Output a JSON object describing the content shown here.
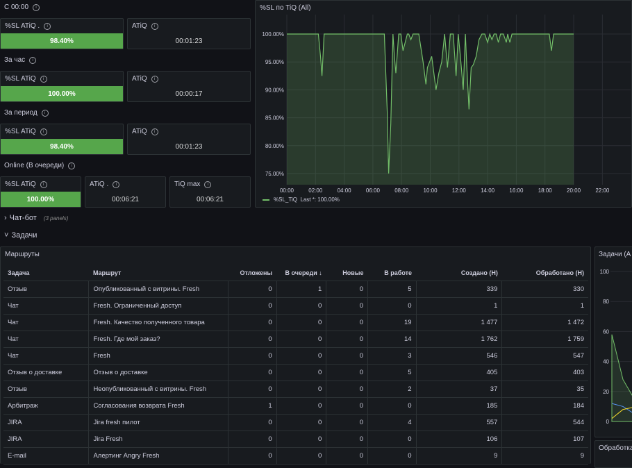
{
  "sections": {
    "s1": "С 00:00",
    "s2": "За час",
    "s3": "За период",
    "s4": "Online (В очереди)"
  },
  "stats": {
    "r1": {
      "sl_title": "%SL ATiQ .",
      "sl_value": "98.40%",
      "atiq_title": "ATiQ",
      "atiq_value": "00:01:23"
    },
    "r2": {
      "sl_title": "%SL ATiQ",
      "sl_value": "100.00%",
      "atiq_title": "ATiQ",
      "atiq_value": "00:00:17"
    },
    "r3": {
      "sl_title": "%SL ATiQ",
      "sl_value": "98.40%",
      "atiq_title": "ATiQ",
      "atiq_value": "00:01:23"
    },
    "r4": {
      "sl_title": "%SL ATiQ",
      "sl_value": "100.00%",
      "atiq_title": "ATiQ .",
      "atiq_value": "00:06:21",
      "tiq_title": "TiQ max",
      "tiq_value": "00:06:21"
    }
  },
  "chart_data": [
    {
      "type": "area",
      "title": "%SL по TiQ (All)",
      "y_ticks": [
        "75.00%",
        "80.00%",
        "85.00%",
        "90.00%",
        "95.00%",
        "100.00%"
      ],
      "x_ticks": [
        "00:00",
        "02:00",
        "04:00",
        "06:00",
        "08:00",
        "10:00",
        "12:00",
        "14:00",
        "16:00",
        "18:00",
        "20:00",
        "22:00"
      ],
      "ylim": [
        73,
        101
      ],
      "xlim": [
        0,
        23
      ],
      "series": [
        {
          "name": "%SL_TiQ",
          "legend": "Last *: 100.00%",
          "color": "#73bf69",
          "x": [
            0.0,
            2.2,
            2.35,
            2.45,
            2.6,
            3.0,
            6.8,
            7.0,
            7.1,
            7.25,
            7.4,
            7.5,
            7.6,
            7.8,
            7.95,
            8.1,
            8.4,
            8.5,
            8.65,
            8.8,
            9.2,
            9.5,
            9.7,
            9.8,
            10.1,
            10.4,
            10.6,
            10.8,
            11.0,
            11.2,
            11.4,
            11.6,
            11.8,
            11.95,
            12.1,
            12.3,
            12.45,
            12.55,
            12.7,
            12.85,
            13.0,
            13.2,
            13.4,
            13.6,
            13.8,
            14.0,
            14.15,
            14.3,
            14.45,
            14.6,
            14.75,
            14.9,
            15.1,
            15.3,
            15.4,
            15.55,
            15.7,
            18.3,
            18.45,
            18.6,
            20.0
          ],
          "y": [
            100,
            100,
            96,
            92.5,
            100,
            100,
            100,
            86,
            75,
            84,
            100,
            96,
            93,
            100,
            100,
            97,
            100,
            100,
            99,
            100,
            100,
            95,
            91,
            94,
            96,
            90,
            93,
            95,
            100,
            94,
            100,
            100,
            92.5,
            100,
            96,
            90,
            100,
            94,
            86.5,
            94,
            94.5,
            96,
            99,
            100,
            100,
            98.5,
            100,
            99,
            100,
            100,
            98.5,
            100,
            100,
            98.5,
            100,
            98.5,
            100,
            100,
            97,
            100,
            100
          ]
        }
      ]
    },
    {
      "type": "line",
      "title": "Задачи (A",
      "y_ticks": [
        "0",
        "20",
        "40",
        "60",
        "80",
        "100"
      ],
      "ylim": [
        0,
        100
      ]
    }
  ],
  "rows": {
    "chatbot": {
      "title": "Чат-бот",
      "sub": "(3 panels)"
    },
    "tasks": {
      "title": "Задачи"
    }
  },
  "table": {
    "title": "Маршруты",
    "columns": [
      "Задача",
      "Маршрут",
      "Отложены",
      "В очереди",
      "Новые",
      "В работе",
      "Создано (Н)",
      "Обработано (Н)"
    ],
    "rows": [
      [
        "Отзыв",
        "Опубликованный с витрины. Fresh",
        "0",
        "1",
        "0",
        "5",
        "339",
        "330"
      ],
      [
        "Чат",
        "Fresh. Ограниченный доступ",
        "0",
        "0",
        "0",
        "0",
        "1",
        "1"
      ],
      [
        "Чат",
        "Fresh. Качество полученного товара",
        "0",
        "0",
        "0",
        "19",
        "1 477",
        "1 472"
      ],
      [
        "Чат",
        "Fresh. Где мой заказ?",
        "0",
        "0",
        "0",
        "14",
        "1 762",
        "1 759"
      ],
      [
        "Чат",
        "Fresh",
        "0",
        "0",
        "0",
        "3",
        "546",
        "547"
      ],
      [
        "Отзыв о доставке",
        "Отзыв о доставке",
        "0",
        "0",
        "0",
        "5",
        "405",
        "403"
      ],
      [
        "Отзыв",
        "Неопубликованный с витрины. Fresh",
        "0",
        "0",
        "0",
        "2",
        "37",
        "35"
      ],
      [
        "Арбитраж",
        "Согласования возврата Fresh",
        "1",
        "0",
        "0",
        "0",
        "185",
        "184"
      ],
      [
        "JIRA",
        "Jira fresh пилот",
        "0",
        "0",
        "0",
        "4",
        "557",
        "544"
      ],
      [
        "JIRA",
        "Jira Fresh",
        "0",
        "0",
        "0",
        "0",
        "106",
        "107"
      ],
      [
        "E-mail",
        "Алертинг Angry Fresh",
        "0",
        "0",
        "0",
        "0",
        "9",
        "9"
      ]
    ]
  },
  "bottom_panel": {
    "title": "Обработка"
  },
  "colors": {
    "green": "#56a64b",
    "bg": "#111217",
    "panel": "#181b1f",
    "border": "#2c3235"
  }
}
